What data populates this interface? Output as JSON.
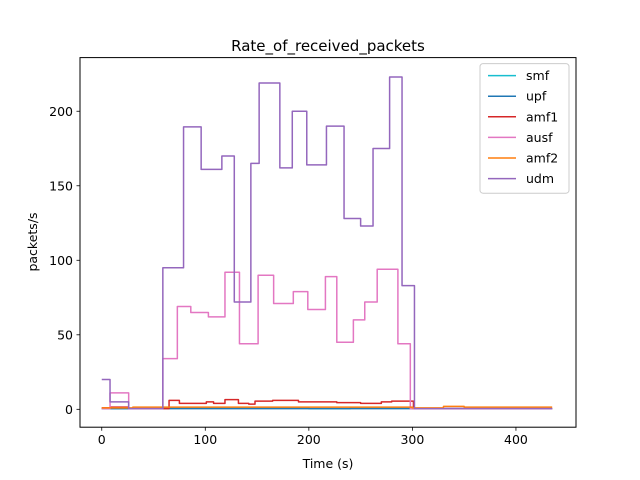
{
  "chart_data": {
    "type": "line",
    "title": "Rate_of_received_packets",
    "xlabel": "Time (s)",
    "ylabel": "packets/s",
    "xlim": [
      -21,
      458
    ],
    "ylim": [
      -12,
      236
    ],
    "xticks": [
      0,
      100,
      200,
      300,
      400
    ],
    "yticks": [
      0,
      50,
      100,
      150,
      200
    ],
    "grid": false,
    "legend_position": "top-right",
    "series": [
      {
        "name": "smf",
        "color": "#17becf",
        "step": true,
        "points": [
          [
            0,
            0.5
          ],
          [
            30,
            0.5
          ],
          [
            60,
            1
          ],
          [
            120,
            1
          ],
          [
            180,
            1
          ],
          [
            200,
            0.5
          ],
          [
            240,
            1
          ],
          [
            300,
            0.5
          ],
          [
            435,
            0.5
          ]
        ]
      },
      {
        "name": "upf",
        "color": "#1f77b4",
        "step": true,
        "points": [
          [
            0,
            0.5
          ],
          [
            60,
            0.5
          ],
          [
            120,
            0.5
          ],
          [
            180,
            0.5
          ],
          [
            240,
            0.5
          ],
          [
            300,
            0.5
          ],
          [
            435,
            0.5
          ]
        ]
      },
      {
        "name": "amf1",
        "color": "#d62728",
        "step": true,
        "points": [
          [
            0,
            1
          ],
          [
            8,
            1.5
          ],
          [
            26,
            0.5
          ],
          [
            59,
            0.5
          ],
          [
            65,
            6
          ],
          [
            75,
            4
          ],
          [
            88,
            4
          ],
          [
            101,
            5
          ],
          [
            108,
            4
          ],
          [
            119,
            6.5
          ],
          [
            132,
            4
          ],
          [
            142,
            3.5
          ],
          [
            148,
            5.5
          ],
          [
            165,
            6
          ],
          [
            190,
            5
          ],
          [
            227,
            4.5
          ],
          [
            250,
            4
          ],
          [
            270,
            5
          ],
          [
            280,
            5.5
          ],
          [
            292,
            5.5
          ],
          [
            301,
            0.5
          ],
          [
            330,
            0.5
          ],
          [
            340,
            0.5
          ],
          [
            435,
            0.5
          ]
        ]
      },
      {
        "name": "ausf",
        "color": "#e377c2",
        "step": true,
        "points": [
          [
            0,
            0.5
          ],
          [
            8,
            11
          ],
          [
            26,
            0.5
          ],
          [
            59,
            34
          ],
          [
            73,
            69
          ],
          [
            86,
            65
          ],
          [
            103,
            62
          ],
          [
            119,
            92
          ],
          [
            133,
            44
          ],
          [
            151,
            90
          ],
          [
            166,
            71
          ],
          [
            185,
            79
          ],
          [
            199,
            67
          ],
          [
            216,
            89
          ],
          [
            227,
            45
          ],
          [
            243,
            60
          ],
          [
            254,
            72
          ],
          [
            266,
            94
          ],
          [
            286,
            44
          ],
          [
            296,
            44
          ],
          [
            298,
            0.5
          ],
          [
            435,
            0.5
          ]
        ]
      },
      {
        "name": "amf2",
        "color": "#ff7f0e",
        "step": true,
        "points": [
          [
            0,
            1
          ],
          [
            30,
            1.5
          ],
          [
            60,
            1.5
          ],
          [
            90,
            1.5
          ],
          [
            120,
            1.5
          ],
          [
            150,
            1.5
          ],
          [
            180,
            1.5
          ],
          [
            210,
            1.5
          ],
          [
            240,
            1.5
          ],
          [
            270,
            1.5
          ],
          [
            300,
            1
          ],
          [
            330,
            2
          ],
          [
            350,
            1.5
          ],
          [
            435,
            1.5
          ]
        ]
      },
      {
        "name": "udm",
        "color": "#9467bd",
        "step": true,
        "points": [
          [
            0,
            20
          ],
          [
            8,
            5
          ],
          [
            26,
            0.5
          ],
          [
            59,
            95
          ],
          [
            79,
            189.5
          ],
          [
            96,
            161
          ],
          [
            116,
            170
          ],
          [
            128,
            72
          ],
          [
            144,
            165
          ],
          [
            152,
            219
          ],
          [
            172,
            162
          ],
          [
            184,
            200
          ],
          [
            198,
            164
          ],
          [
            217,
            190
          ],
          [
            234,
            128
          ],
          [
            250,
            123
          ],
          [
            262,
            175
          ],
          [
            278,
            223
          ],
          [
            290,
            83
          ],
          [
            300,
            83
          ],
          [
            302,
            0.5
          ],
          [
            435,
            0.5
          ]
        ]
      }
    ]
  }
}
